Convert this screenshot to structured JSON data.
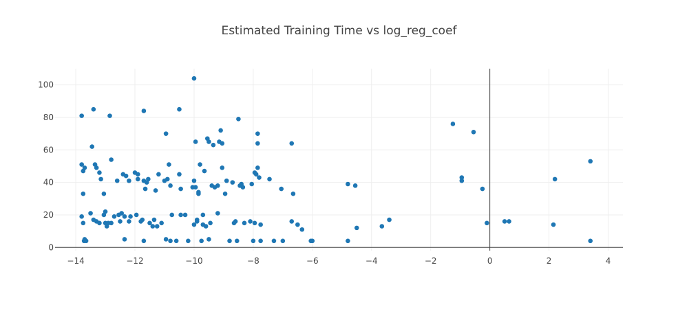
{
  "chart_data": {
    "type": "scatter",
    "title": "Estimated Training Time vs log_reg_coef",
    "xlabel": "",
    "ylabel": "",
    "xlim": [
      -14.7,
      4.5
    ],
    "ylim": [
      -2,
      110
    ],
    "x_ticks": [
      -14,
      -12,
      -10,
      -8,
      -6,
      -4,
      -2,
      0,
      2,
      4
    ],
    "y_ticks": [
      0,
      20,
      40,
      60,
      80,
      100
    ],
    "grid": true,
    "legend": "none",
    "marker_color": "#1f77b4",
    "series": [
      {
        "points": [
          [
            -13.8,
            81
          ],
          [
            -13.8,
            51
          ],
          [
            -13.75,
            47
          ],
          [
            -13.7,
            49
          ],
          [
            -13.75,
            33
          ],
          [
            -13.8,
            19
          ],
          [
            -13.75,
            15
          ],
          [
            -13.7,
            5
          ],
          [
            -13.72,
            4
          ],
          [
            -13.65,
            4
          ],
          [
            -13.5,
            21
          ],
          [
            -13.45,
            62
          ],
          [
            -13.4,
            85
          ],
          [
            -13.4,
            17
          ],
          [
            -13.35,
            51
          ],
          [
            -13.3,
            49
          ],
          [
            -13.3,
            16
          ],
          [
            -13.2,
            46
          ],
          [
            -13.2,
            15
          ],
          [
            -13.15,
            42
          ],
          [
            -13.05,
            33
          ],
          [
            -13.05,
            20
          ],
          [
            -13.0,
            22
          ],
          [
            -13.0,
            15
          ],
          [
            -12.95,
            13
          ],
          [
            -12.9,
            15
          ],
          [
            -12.85,
            81
          ],
          [
            -12.8,
            54
          ],
          [
            -12.8,
            15
          ],
          [
            -12.7,
            19
          ],
          [
            -12.6,
            41
          ],
          [
            -12.55,
            20
          ],
          [
            -12.5,
            16
          ],
          [
            -12.45,
            21
          ],
          [
            -12.4,
            45
          ],
          [
            -12.35,
            19
          ],
          [
            -12.3,
            44
          ],
          [
            -12.35,
            5
          ],
          [
            -12.2,
            41
          ],
          [
            -12.2,
            16
          ],
          [
            -12.15,
            19
          ],
          [
            -12.0,
            46
          ],
          [
            -11.95,
            20
          ],
          [
            -11.9,
            45
          ],
          [
            -11.9,
            42
          ],
          [
            -11.8,
            16
          ],
          [
            -11.75,
            17
          ],
          [
            -11.7,
            84
          ],
          [
            -11.7,
            41
          ],
          [
            -11.7,
            4
          ],
          [
            -11.65,
            36
          ],
          [
            -11.6,
            40
          ],
          [
            -11.55,
            42
          ],
          [
            -11.5,
            15
          ],
          [
            -11.4,
            13
          ],
          [
            -11.35,
            17
          ],
          [
            -11.3,
            35
          ],
          [
            -11.25,
            13
          ],
          [
            -11.2,
            45
          ],
          [
            -11.1,
            15
          ],
          [
            -11.0,
            41
          ],
          [
            -10.95,
            5
          ],
          [
            -10.95,
            70
          ],
          [
            -10.9,
            42
          ],
          [
            -10.85,
            51
          ],
          [
            -10.8,
            38
          ],
          [
            -10.75,
            20
          ],
          [
            -10.8,
            4
          ],
          [
            -10.6,
            4
          ],
          [
            -10.5,
            85
          ],
          [
            -10.5,
            45
          ],
          [
            -10.45,
            20
          ],
          [
            -10.45,
            36
          ],
          [
            -10.3,
            20
          ],
          [
            -10.2,
            4
          ],
          [
            -10.0,
            104
          ],
          [
            -10.05,
            37
          ],
          [
            -10.0,
            14
          ],
          [
            -10.0,
            41
          ],
          [
            -9.95,
            65
          ],
          [
            -9.95,
            37
          ],
          [
            -9.9,
            16
          ],
          [
            -9.9,
            17
          ],
          [
            -9.85,
            34
          ],
          [
            -9.85,
            33
          ],
          [
            -9.8,
            51
          ],
          [
            -9.75,
            4
          ],
          [
            -9.7,
            20
          ],
          [
            -9.7,
            14
          ],
          [
            -9.65,
            47
          ],
          [
            -9.6,
            13
          ],
          [
            -9.55,
            67
          ],
          [
            -9.5,
            65
          ],
          [
            -9.5,
            5
          ],
          [
            -9.45,
            15
          ],
          [
            -9.4,
            38
          ],
          [
            -9.35,
            63
          ],
          [
            -9.3,
            37
          ],
          [
            -9.2,
            21
          ],
          [
            -9.2,
            38
          ],
          [
            -9.15,
            65
          ],
          [
            -9.1,
            72
          ],
          [
            -9.05,
            64
          ],
          [
            -9.05,
            49
          ],
          [
            -8.95,
            33
          ],
          [
            -8.9,
            41
          ],
          [
            -8.8,
            4
          ],
          [
            -8.7,
            40
          ],
          [
            -8.65,
            15
          ],
          [
            -8.6,
            16
          ],
          [
            -8.5,
            79
          ],
          [
            -8.55,
            4
          ],
          [
            -8.45,
            38
          ],
          [
            -8.4,
            39
          ],
          [
            -8.35,
            37
          ],
          [
            -8.3,
            15
          ],
          [
            -8.1,
            16
          ],
          [
            -8.05,
            39
          ],
          [
            -8.0,
            4
          ],
          [
            -7.95,
            46
          ],
          [
            -7.95,
            15
          ],
          [
            -7.9,
            45
          ],
          [
            -7.85,
            70
          ],
          [
            -7.85,
            64
          ],
          [
            -7.85,
            49
          ],
          [
            -7.8,
            43
          ],
          [
            -7.75,
            14
          ],
          [
            -7.75,
            4
          ],
          [
            -7.45,
            42
          ],
          [
            -7.3,
            4
          ],
          [
            -7.05,
            36
          ],
          [
            -7.0,
            4
          ],
          [
            -6.7,
            64
          ],
          [
            -6.7,
            16
          ],
          [
            -6.65,
            33
          ],
          [
            -6.5,
            14
          ],
          [
            -6.35,
            11
          ],
          [
            -6.05,
            4
          ],
          [
            -6.0,
            4
          ],
          [
            -4.8,
            39
          ],
          [
            -4.8,
            4
          ],
          [
            -4.55,
            38
          ],
          [
            -4.5,
            12
          ],
          [
            -3.65,
            13
          ],
          [
            -3.4,
            17
          ],
          [
            -1.25,
            76
          ],
          [
            -0.95,
            43
          ],
          [
            -0.95,
            41
          ],
          [
            -0.55,
            71
          ],
          [
            -0.25,
            36
          ],
          [
            -0.1,
            15
          ],
          [
            0.5,
            16
          ],
          [
            0.65,
            16
          ],
          [
            2.15,
            14
          ],
          [
            2.2,
            42
          ],
          [
            3.4,
            53
          ],
          [
            3.4,
            4
          ]
        ]
      }
    ]
  }
}
